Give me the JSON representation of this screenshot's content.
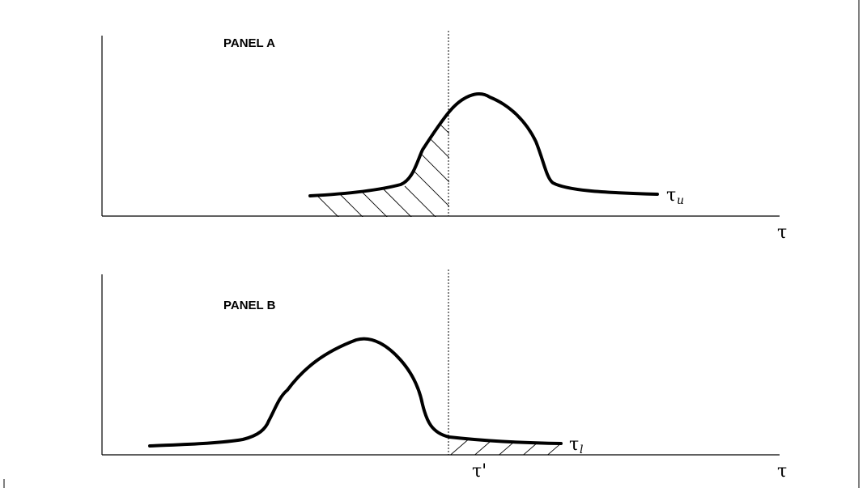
{
  "panel_a": {
    "label": "PANEL A",
    "curve_label": {
      "symbol": "τ",
      "subscript": "u"
    },
    "x_axis_label": "τ"
  },
  "panel_b": {
    "label": "PANEL B",
    "curve_label": {
      "symbol": "τ",
      "subscript": "l"
    },
    "x_axis_label": "τ",
    "threshold_label": "τ'"
  }
}
